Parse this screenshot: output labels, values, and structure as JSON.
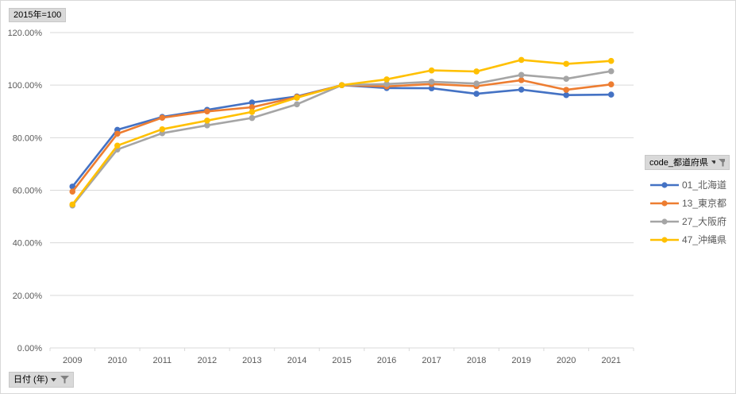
{
  "chart": {
    "title_button": "2015年=100",
    "category_field_button": "日付 (年)",
    "legend": {
      "field_button": "code_都道府県",
      "items": [
        {
          "label": "01_北海道",
          "color": "#4472C4"
        },
        {
          "label": "13_東京都",
          "color": "#ED7D31"
        },
        {
          "label": "27_大阪府",
          "color": "#A5A5A5"
        },
        {
          "label": "47_沖縄県",
          "color": "#FFC000"
        }
      ]
    },
    "colors": {
      "gridline": "#d9d9d9",
      "axis_text": "#595959",
      "button_bg": "#d9d9d9",
      "funnel": "#808080"
    }
  },
  "chart_data": {
    "type": "line",
    "title": "2015年=100",
    "categories": [
      "2009",
      "2010",
      "2011",
      "2012",
      "2013",
      "2014",
      "2015",
      "2016",
      "2017",
      "2018",
      "2019",
      "2020",
      "2021"
    ],
    "series": [
      {
        "name": "01_北海道",
        "color": "#4472C4",
        "values": [
          61.4,
          83.0,
          87.9,
          90.6,
          93.4,
          95.7,
          100.0,
          98.9,
          98.8,
          96.7,
          98.3,
          96.2,
          96.4
        ]
      },
      {
        "name": "13_東京都",
        "color": "#ED7D31",
        "values": [
          59.5,
          81.5,
          87.6,
          90.0,
          91.6,
          95.5,
          100.0,
          99.5,
          100.4,
          99.6,
          101.9,
          98.2,
          100.3
        ]
      },
      {
        "name": "27_大阪府",
        "color": "#A5A5A5",
        "values": [
          54.2,
          75.5,
          81.7,
          84.7,
          87.5,
          92.7,
          100.0,
          100.4,
          101.3,
          100.6,
          103.9,
          102.4,
          105.3
        ]
      },
      {
        "name": "47_沖縄県",
        "color": "#FFC000",
        "values": [
          54.6,
          77.0,
          83.2,
          86.5,
          89.8,
          95.2,
          100.0,
          102.2,
          105.6,
          105.2,
          109.6,
          108.1,
          109.2
        ]
      }
    ],
    "xlabel": "日付 (年)",
    "ylabel": "",
    "ylim": [
      0,
      120
    ],
    "ytick_step": 20,
    "ytick_format": "#.00%",
    "grid": true,
    "legend_position": "right",
    "legend_title": "code_都道府県"
  }
}
